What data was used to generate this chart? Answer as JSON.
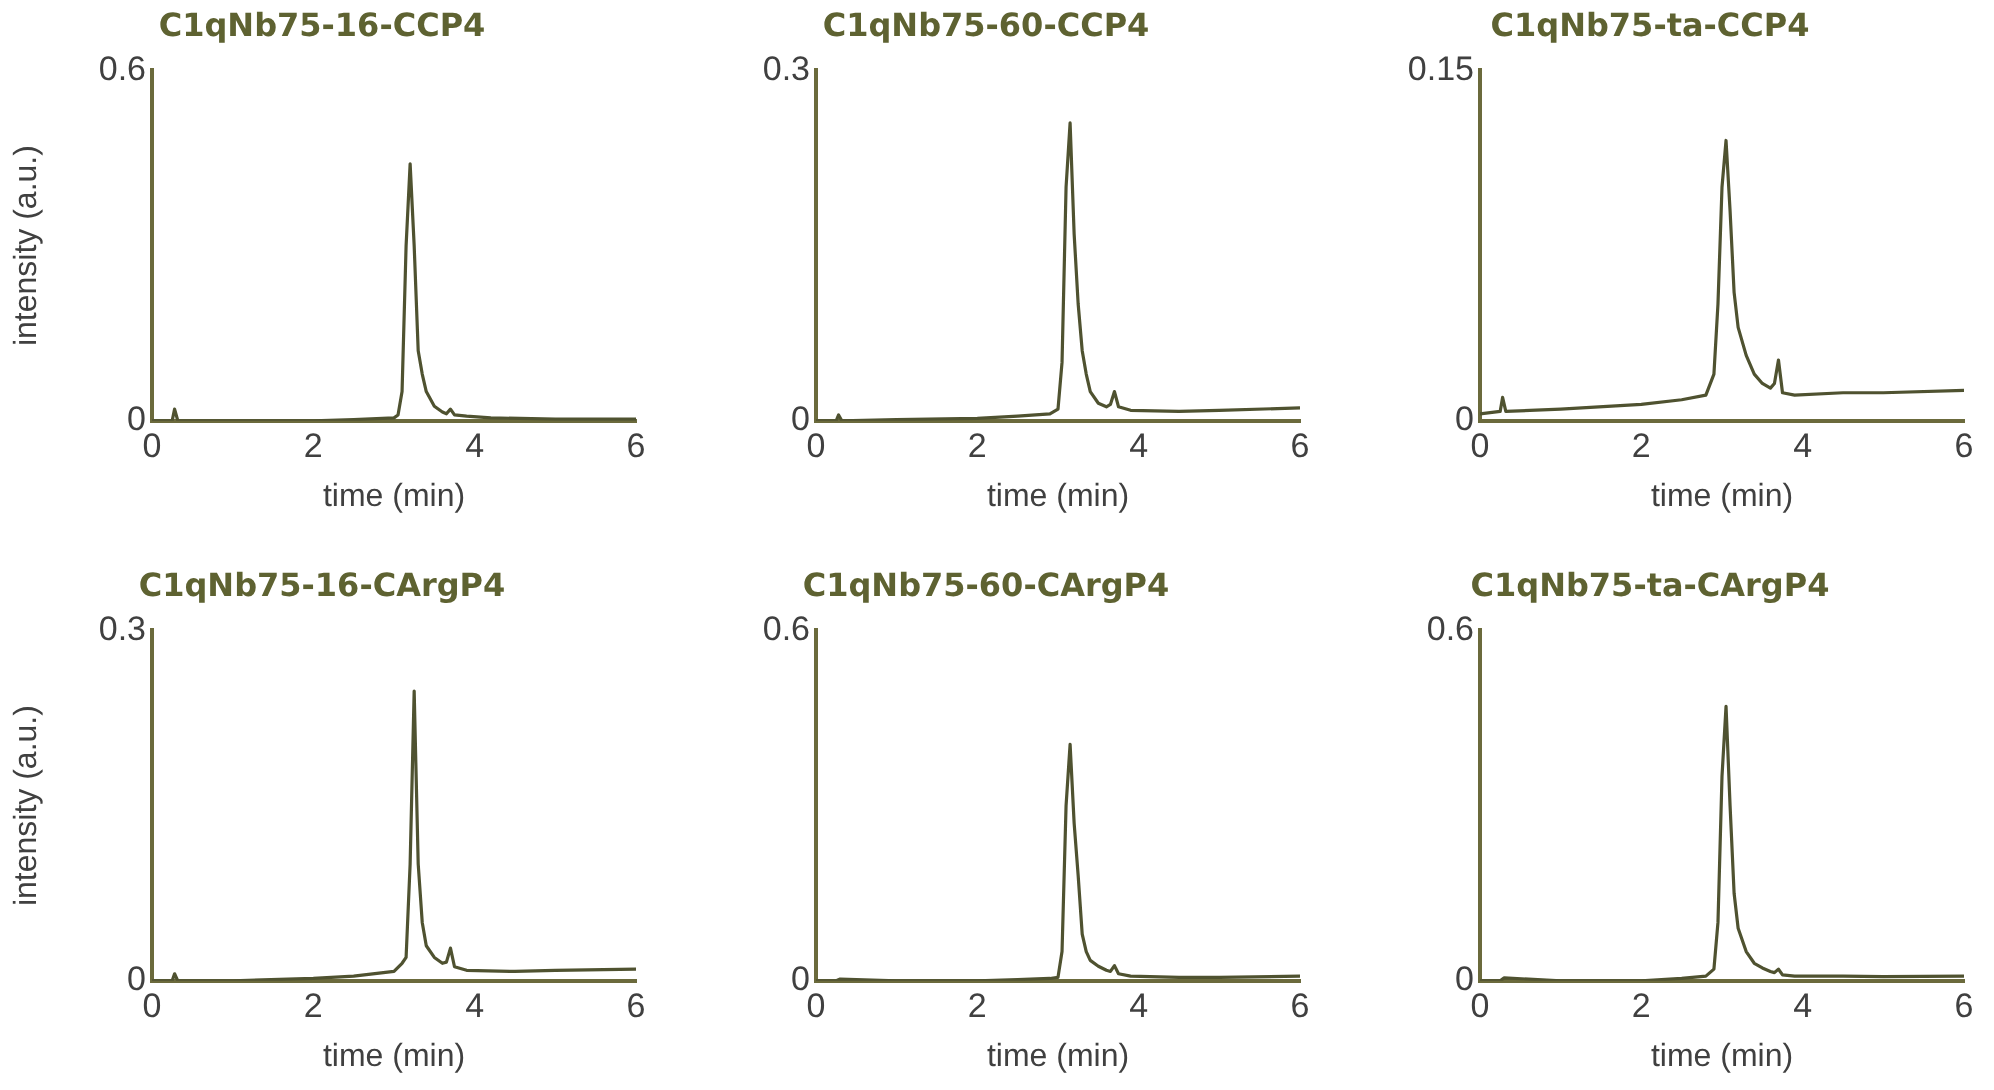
{
  "chart_data": [
    {
      "type": "line",
      "title": "C1qNb75-16-CCP4",
      "xlabel": "time (min)",
      "ylabel": "intensity (a.u.)",
      "color": "#4f5230",
      "marker": "none",
      "xlim": [
        0,
        6
      ],
      "ylim": [
        0,
        0.6
      ],
      "xticks": [
        0,
        2,
        4,
        6
      ],
      "yticks": [
        0,
        0.6
      ],
      "x": [
        0,
        0.25,
        0.28,
        0.32,
        1,
        2,
        2.5,
        3,
        3.05,
        3.1,
        3.15,
        3.2,
        3.25,
        3.3,
        3.35,
        3.4,
        3.5,
        3.6,
        3.65,
        3.7,
        3.75,
        3.9,
        4.2,
        5,
        6
      ],
      "values": [
        0,
        0,
        0.02,
        0,
        0,
        0,
        0.002,
        0.005,
        0.01,
        0.05,
        0.3,
        0.44,
        0.3,
        0.12,
        0.08,
        0.05,
        0.025,
        0.015,
        0.012,
        0.02,
        0.01,
        0.008,
        0.005,
        0.003,
        0.003
      ]
    },
    {
      "type": "line",
      "title": "C1qNb75-60-CCP4",
      "xlabel": "time (min)",
      "color": "#4f5230",
      "marker": "none",
      "xlim": [
        0,
        6
      ],
      "ylim": [
        0,
        0.3
      ],
      "xticks": [
        0,
        2,
        4,
        6
      ],
      "yticks": [
        0,
        0.3
      ],
      "x": [
        0,
        0.25,
        0.28,
        0.32,
        1,
        2,
        2.5,
        2.9,
        3,
        3.05,
        3.1,
        3.15,
        3.2,
        3.25,
        3.3,
        3.35,
        3.4,
        3.5,
        3.6,
        3.65,
        3.7,
        3.75,
        3.9,
        4.5,
        5,
        6
      ],
      "values": [
        0,
        0,
        0.005,
        0,
        0.001,
        0.002,
        0.004,
        0.006,
        0.01,
        0.05,
        0.2,
        0.255,
        0.16,
        0.1,
        0.06,
        0.04,
        0.025,
        0.015,
        0.012,
        0.014,
        0.025,
        0.012,
        0.009,
        0.008,
        0.009,
        0.011
      ]
    },
    {
      "type": "line",
      "title": "C1qNb75-ta-CCP4",
      "xlabel": "time (min)",
      "color": "#4f5230",
      "marker": "none",
      "xlim": [
        0,
        6
      ],
      "ylim": [
        0,
        0.15
      ],
      "xticks": [
        0,
        2,
        4,
        6
      ],
      "yticks": [
        0,
        0.15
      ],
      "x": [
        0,
        0.25,
        0.28,
        0.32,
        1,
        2,
        2.5,
        2.8,
        2.9,
        2.95,
        3,
        3.05,
        3.1,
        3.15,
        3.2,
        3.3,
        3.4,
        3.5,
        3.6,
        3.65,
        3.7,
        3.75,
        3.9,
        4.5,
        5,
        6
      ],
      "values": [
        0.003,
        0.004,
        0.01,
        0.004,
        0.005,
        0.007,
        0.009,
        0.011,
        0.02,
        0.05,
        0.1,
        0.12,
        0.09,
        0.055,
        0.04,
        0.028,
        0.02,
        0.016,
        0.014,
        0.016,
        0.026,
        0.012,
        0.011,
        0.012,
        0.012,
        0.013
      ]
    },
    {
      "type": "line",
      "title": "C1qNb75-16-CArgP4",
      "xlabel": "time (min)",
      "ylabel": "intensity (a.u.)",
      "color": "#4f5230",
      "marker": "none",
      "xlim": [
        0,
        6
      ],
      "ylim": [
        0,
        0.3
      ],
      "xticks": [
        0,
        2,
        4,
        6
      ],
      "yticks": [
        0,
        0.3
      ],
      "x": [
        0,
        0.25,
        0.28,
        0.32,
        1,
        2,
        2.5,
        3,
        3.1,
        3.15,
        3.2,
        3.25,
        3.3,
        3.35,
        3.4,
        3.5,
        3.6,
        3.65,
        3.7,
        3.75,
        3.9,
        4.5,
        5,
        6
      ],
      "values": [
        0,
        0,
        0.006,
        0,
        0,
        0.002,
        0.004,
        0.008,
        0.015,
        0.02,
        0.1,
        0.248,
        0.1,
        0.05,
        0.03,
        0.02,
        0.015,
        0.016,
        0.028,
        0.012,
        0.009,
        0.008,
        0.009,
        0.01
      ]
    },
    {
      "type": "line",
      "title": "C1qNb75-60-CArgP4",
      "xlabel": "time (min)",
      "color": "#4f5230",
      "marker": "none",
      "xlim": [
        0,
        6
      ],
      "ylim": [
        0,
        0.6
      ],
      "xticks": [
        0,
        2,
        4,
        6
      ],
      "yticks": [
        0,
        0.6
      ],
      "x": [
        0,
        0.25,
        0.3,
        1,
        2,
        2.5,
        2.9,
        3,
        3.05,
        3.1,
        3.15,
        3.2,
        3.25,
        3.3,
        3.35,
        3.4,
        3.5,
        3.6,
        3.65,
        3.7,
        3.75,
        3.9,
        4.5,
        5,
        6
      ],
      "values": [
        0,
        0,
        0.003,
        0,
        0,
        0.002,
        0.004,
        0.006,
        0.05,
        0.3,
        0.405,
        0.27,
        0.18,
        0.08,
        0.05,
        0.035,
        0.025,
        0.018,
        0.016,
        0.026,
        0.012,
        0.008,
        0.006,
        0.006,
        0.008
      ]
    },
    {
      "type": "line",
      "title": "C1qNb75-ta-CArgP4",
      "xlabel": "time (min)",
      "color": "#4f5230",
      "marker": "none",
      "xlim": [
        0,
        6
      ],
      "ylim": [
        0,
        0.6
      ],
      "xticks": [
        0,
        2,
        4,
        6
      ],
      "yticks": [
        0,
        0.6
      ],
      "x": [
        0,
        0.25,
        0.3,
        1,
        2,
        2.5,
        2.8,
        2.9,
        2.95,
        3,
        3.05,
        3.1,
        3.15,
        3.2,
        3.3,
        3.4,
        3.5,
        3.6,
        3.65,
        3.7,
        3.75,
        3.9,
        4.5,
        5,
        6
      ],
      "values": [
        0,
        0,
        0.005,
        0,
        0,
        0.004,
        0.008,
        0.02,
        0.1,
        0.35,
        0.47,
        0.3,
        0.15,
        0.09,
        0.05,
        0.03,
        0.022,
        0.016,
        0.014,
        0.02,
        0.01,
        0.008,
        0.008,
        0.007,
        0.008
      ]
    }
  ]
}
